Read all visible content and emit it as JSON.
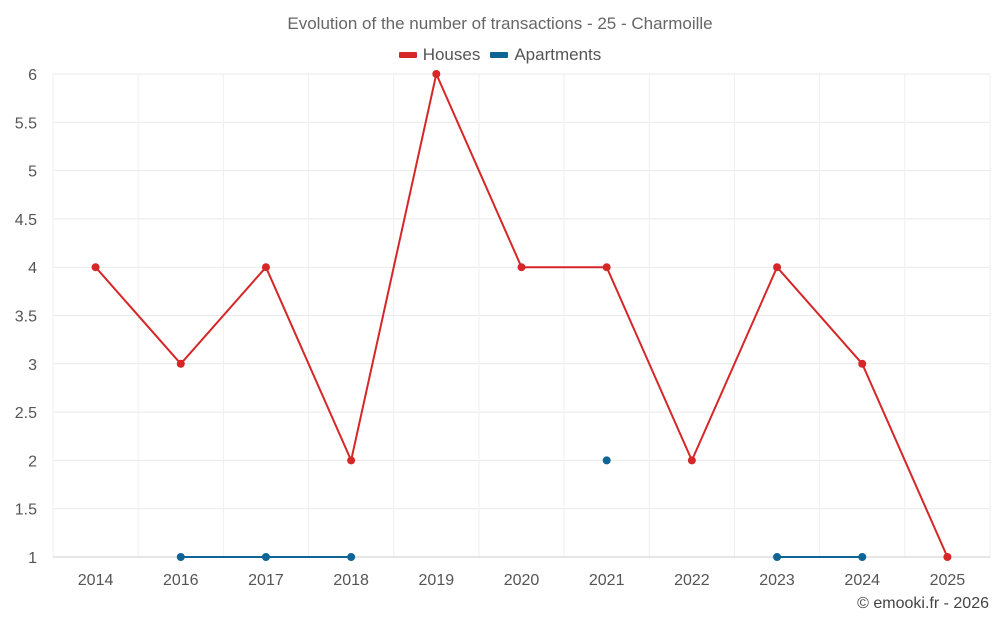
{
  "chart_data": {
    "type": "line",
    "title": "Evolution of the number of transactions - 25 - Charmoille",
    "categories": [
      "2014",
      "2016",
      "2017",
      "2018",
      "2019",
      "2020",
      "2021",
      "2022",
      "2023",
      "2024",
      "2025"
    ],
    "ylim": [
      1,
      6
    ],
    "yticks": [
      "1",
      "1.5",
      "2",
      "2.5",
      "3",
      "3.5",
      "4",
      "4.5",
      "5",
      "5.5",
      "6"
    ],
    "grid": true,
    "legend_position": "top-center",
    "series": [
      {
        "name": "Houses",
        "color": "#d62728",
        "values": [
          4,
          3,
          4,
          2,
          6,
          4,
          4,
          2,
          4,
          3,
          1
        ]
      },
      {
        "name": "Apartments",
        "color": "#0e6595",
        "values": [
          null,
          1,
          1,
          1,
          null,
          null,
          2,
          null,
          1,
          1,
          null
        ]
      }
    ]
  },
  "footer": {
    "copyright": "© emooki.fr - 2026"
  }
}
